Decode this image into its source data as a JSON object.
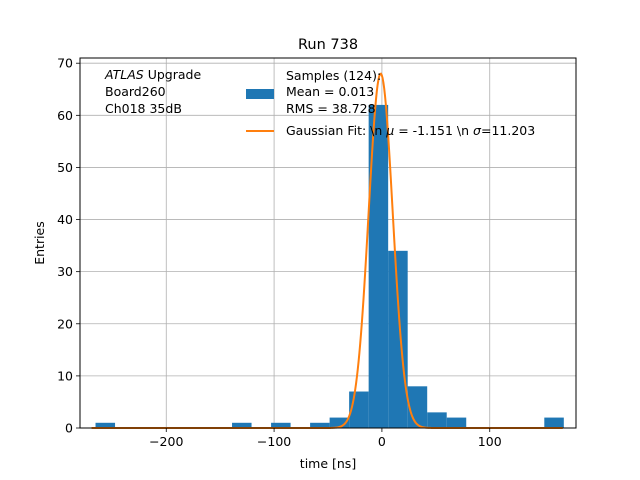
{
  "chart_data": {
    "type": "bar",
    "title": "Run 738",
    "xlabel": "time [ns]",
    "ylabel": "Entries",
    "xlim": [
      -280,
      180
    ],
    "ylim": [
      0,
      71
    ],
    "xticks": [
      -200,
      -100,
      0,
      100
    ],
    "xtick_labels": [
      "−200",
      "−100",
      "0",
      "100"
    ],
    "yticks": [
      0,
      10,
      20,
      30,
      40,
      50,
      60,
      70
    ],
    "grid": true,
    "bin_width": 18.1,
    "histogram": {
      "name": "Samples (124):",
      "bin_left_edges": [
        -265.6,
        -139.0,
        -102.8,
        -66.6,
        -48.5,
        -30.4,
        -12.3,
        5.8,
        23.9,
        42.0,
        60.1,
        150.6
      ],
      "counts": [
        1,
        1,
        1,
        1,
        2,
        7,
        62,
        34,
        8,
        3,
        2,
        2
      ],
      "color": "#1f77b4"
    },
    "fit": {
      "name": "Gaussian Fit: \\n μ = -1.151 \\n σ=11.203",
      "function": "gaussian",
      "amplitude": 68,
      "mu": -1.151,
      "sigma": 11.203,
      "color": "#ff7f0e"
    },
    "annotation": {
      "italic": "ATLAS",
      "line1_rest": " Upgrade",
      "line2": " Board260",
      "line3": " Ch018 35dB"
    },
    "legend": {
      "placement": "upper-right",
      "hist_line1": "Samples (124):",
      "hist_line2": " Mean = 0.013",
      "hist_line3": " RMS = 38.728",
      "fit_prefix": "Gaussian Fit: \\n ",
      "fit_mu_sym": "μ",
      "fit_mid": " = -1.151 \\n ",
      "fit_sigma_sym": "σ",
      "fit_suffix": "=11.203"
    }
  }
}
